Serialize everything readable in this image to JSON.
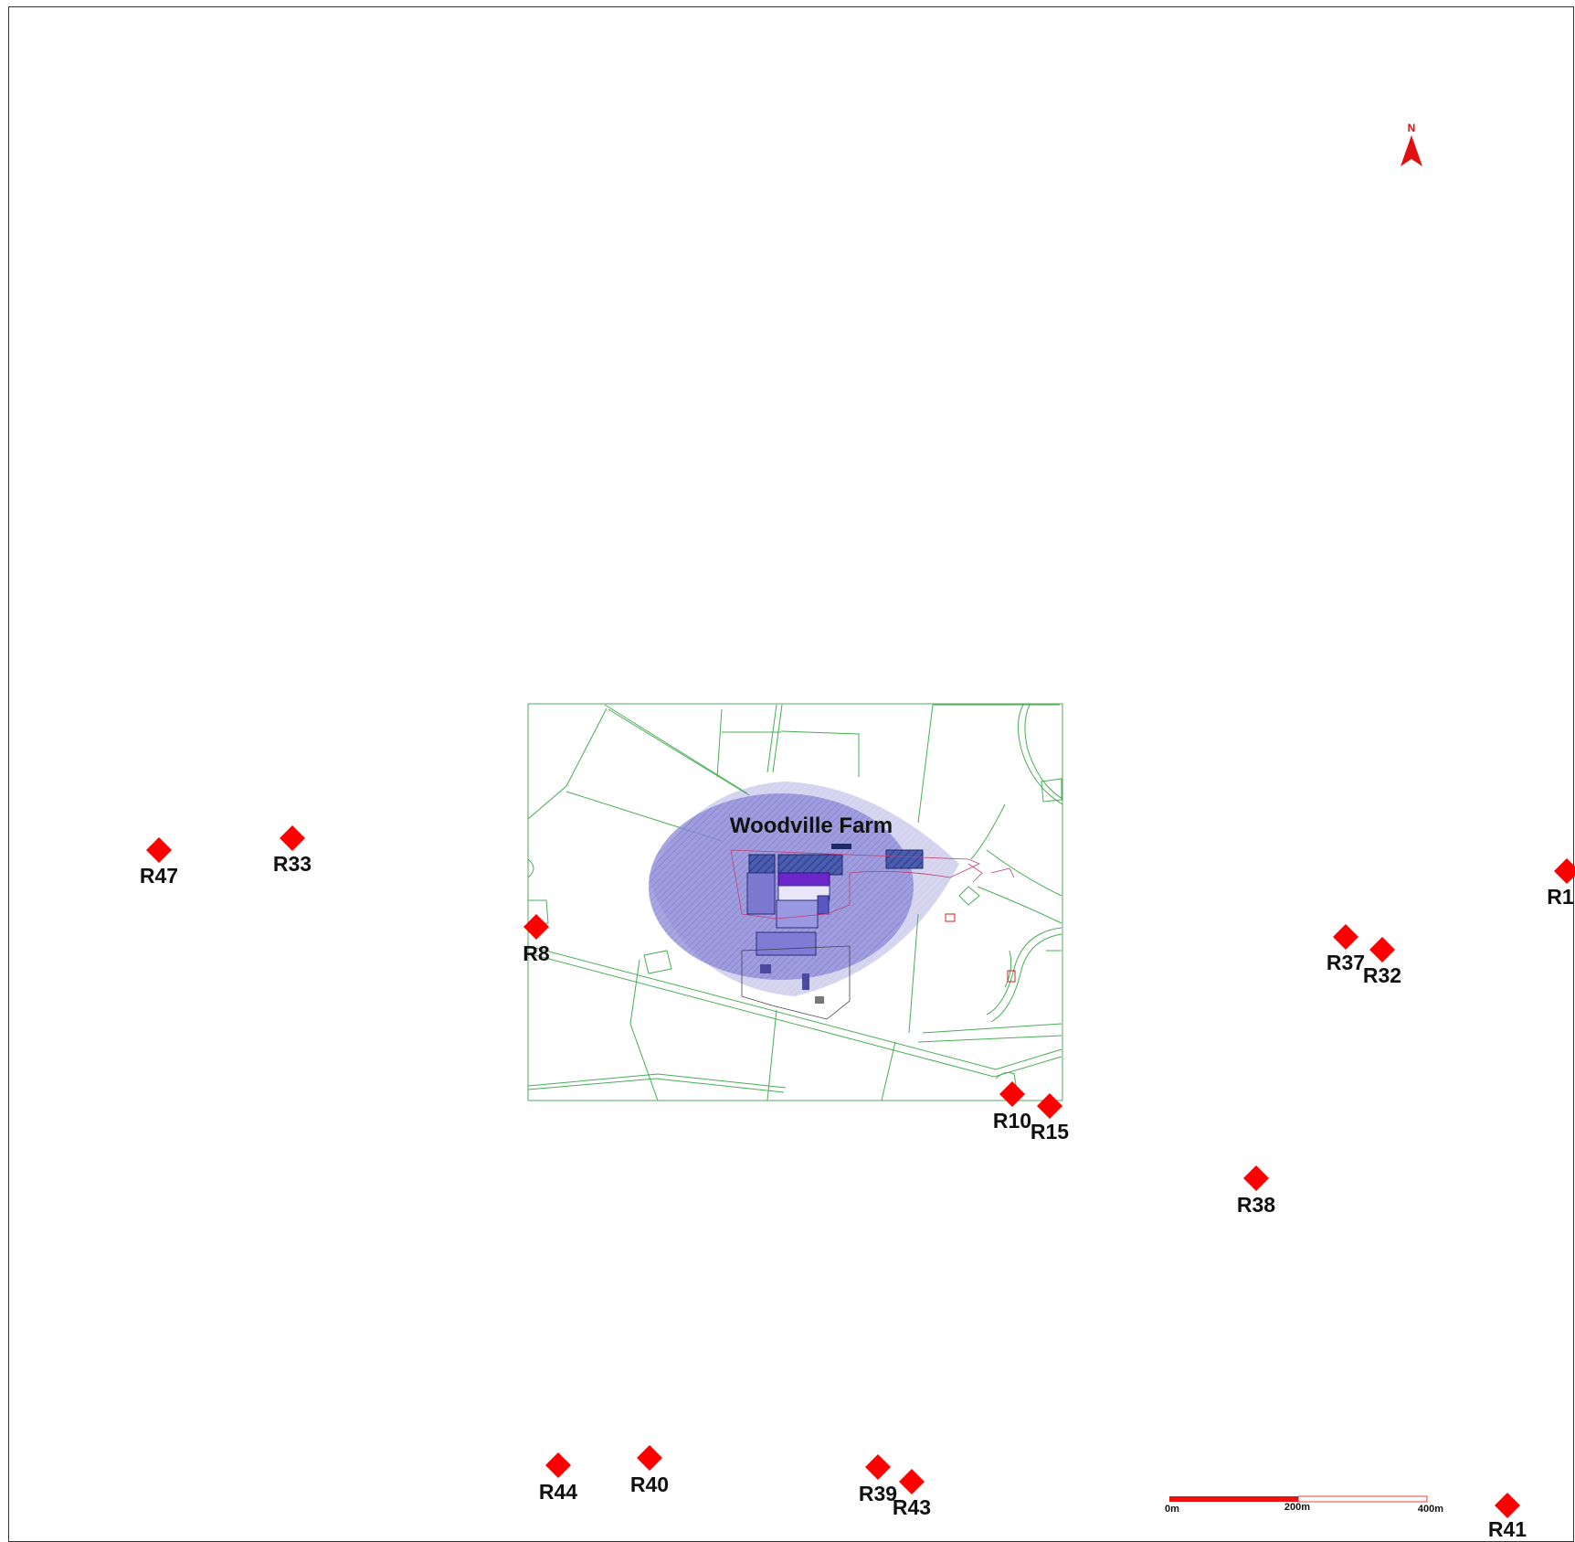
{
  "map": {
    "site_label": "Woodville Farm",
    "north_label": "N",
    "scale_bar": {
      "labels": [
        "0m",
        "200m",
        "400m"
      ]
    },
    "colors": {
      "receptor": "#ff0000",
      "odour_contour": "#7a78d0",
      "field_lines": "#3aa64a",
      "scale_bar": "#ee1111"
    },
    "receptors": [
      {
        "id": "R47",
        "label": "R47"
      },
      {
        "id": "R33",
        "label": "R33"
      },
      {
        "id": "R8",
        "label": "R8"
      },
      {
        "id": "R10",
        "label": "R10"
      },
      {
        "id": "R15",
        "label": "R15"
      },
      {
        "id": "R37",
        "label": "R37"
      },
      {
        "id": "R32",
        "label": "R32"
      },
      {
        "id": "R38",
        "label": "R38"
      },
      {
        "id": "R1",
        "label": "R1"
      },
      {
        "id": "R44",
        "label": "R44"
      },
      {
        "id": "R40",
        "label": "R40"
      },
      {
        "id": "R39",
        "label": "R39"
      },
      {
        "id": "R43",
        "label": "R43"
      },
      {
        "id": "R41",
        "label": "R41"
      }
    ]
  }
}
